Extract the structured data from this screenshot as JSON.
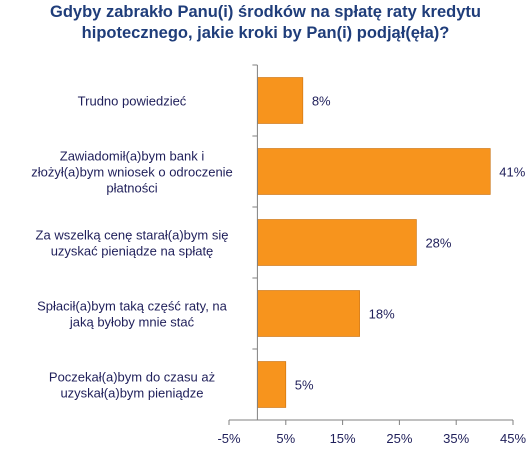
{
  "chart_data": {
    "type": "bar",
    "orientation": "horizontal",
    "title_lines": [
      "Gdyby zabrakło Panu(i) środków na spłatę raty kredytu",
      "hipotecznego, jakie kroki by Pan(i) podjął(ęła)?"
    ],
    "categories": [
      [
        "Trudno powiedzieć"
      ],
      [
        "Zawiadomił(a)bym bank i",
        "złożył(a)bym wniosek o odroczenie",
        "płatności"
      ],
      [
        "Za wszelką cenę starał(a)bym się",
        "uzyskać pieniądze na spłatę"
      ],
      [
        "Spłacił(a)bym taką część raty, na",
        "jaką byłoby mnie stać"
      ],
      [
        "Poczekał(a)bym do czasu aż",
        "uzyskał(a)bym pieniądze"
      ]
    ],
    "values": [
      8,
      41,
      28,
      18,
      5
    ],
    "value_labels": [
      "8%",
      "41%",
      "28%",
      "18%",
      "5%"
    ],
    "xlim": [
      -5,
      45
    ],
    "xticks": [
      -5,
      5,
      15,
      25,
      35,
      45
    ],
    "xtick_labels": [
      "-5%",
      "5%",
      "15%",
      "25%",
      "35%",
      "45%"
    ],
    "grid": false,
    "legend": "none",
    "colors": {
      "bar": "#f7941d",
      "bar_border": "#c96f0c",
      "title": "#1f3d7a",
      "text": "#1f1f5a",
      "axis": "#808080"
    }
  }
}
